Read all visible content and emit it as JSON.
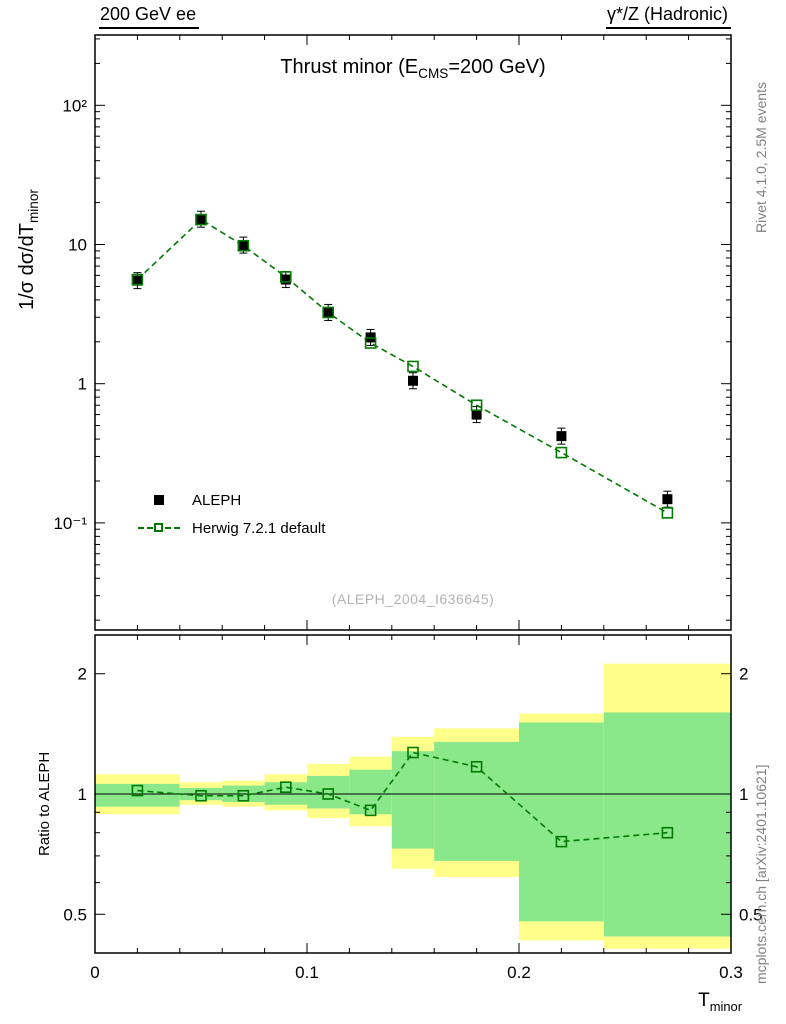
{
  "page": {
    "header_left": "200 GeV ee",
    "header_right": "γ*/Z (Hadronic)",
    "side_top": "Rivet 4.1.0,  2.5M events",
    "side_bottom": "mcplots.cern.ch [arXiv:2401.10621]",
    "watermark": "(ALEPH_2004_I636645)"
  },
  "main_panel": {
    "title": {
      "pre": "Thrust minor (E",
      "sub": "CMS",
      "post": "=200 GeV)"
    },
    "ylabel": {
      "pre": "1/σ  dσ/dT",
      "sub": "minor"
    }
  },
  "xlabel": {
    "pre": "T",
    "sub": "minor"
  },
  "chart_data": {
    "type": "line",
    "title": "Thrust minor (E_CMS=200 GeV)",
    "xlabel": "T_minor",
    "ylabel": "1/σ dσ/dT_minor",
    "x_range": [
      0,
      0.3
    ],
    "y_scale": "log",
    "y_range": [
      0.017,
      320
    ],
    "x_major_ticks": [
      0,
      0.1,
      0.2,
      0.3
    ],
    "x_tick_labels": [
      "0",
      "0.1",
      "0.2",
      "0.3"
    ],
    "y_major_ticks": [
      0.1,
      1,
      10,
      100
    ],
    "y_tick_labels": [
      "10⁻¹",
      "1",
      "10",
      "10²"
    ],
    "legend_position": "middle-left",
    "grid": false,
    "bin_edges": [
      0,
      0.04,
      0.06,
      0.08,
      0.1,
      0.12,
      0.14,
      0.16,
      0.2,
      0.24,
      0.3
    ],
    "x": [
      0.02,
      0.05,
      0.07,
      0.09,
      0.11,
      0.13,
      0.15,
      0.18,
      0.22,
      0.27
    ],
    "series": [
      {
        "name": "ALEPH",
        "marker": "filled-square",
        "color": "#000000",
        "style": "points",
        "values": [
          5.5,
          15.2,
          9.9,
          5.6,
          3.25,
          2.15,
          1.05,
          0.6,
          0.42,
          0.148
        ]
      },
      {
        "name": "Herwig 7.2.1 default",
        "marker": "open-square",
        "color": "#007a00",
        "style": "dashed-line",
        "values": [
          5.6,
          15.1,
          9.8,
          5.85,
          3.25,
          1.96,
          1.33,
          0.7,
          0.32,
          0.118
        ]
      }
    ],
    "ratio": {
      "ylabel": "Ratio to ALEPH",
      "y_scale": "log",
      "y_range": [
        0.4,
        2.5
      ],
      "y_major_ticks": [
        0.5,
        1,
        2
      ],
      "y_tick_labels": [
        "0.5",
        "1",
        "2"
      ],
      "y_ticks_minor": [
        0.4,
        0.6,
        0.7,
        0.8,
        0.9
      ],
      "band_outer_color": "#ffff8a",
      "band_inner_color": "#8ae88a",
      "values": [
        1.02,
        0.99,
        0.99,
        1.04,
        1.0,
        0.91,
        1.27,
        1.17,
        0.76,
        0.8
      ],
      "bands": [
        {
          "outer": [
            0.89,
            1.12
          ],
          "inner": [
            0.93,
            1.06
          ]
        },
        {
          "outer": [
            0.94,
            1.07
          ],
          "inner": [
            0.965,
            1.035
          ]
        },
        {
          "outer": [
            0.93,
            1.08
          ],
          "inner": [
            0.955,
            1.05
          ]
        },
        {
          "outer": [
            0.91,
            1.12
          ],
          "inner": [
            0.94,
            1.07
          ]
        },
        {
          "outer": [
            0.87,
            1.19
          ],
          "inner": [
            0.92,
            1.11
          ]
        },
        {
          "outer": [
            0.83,
            1.24
          ],
          "inner": [
            0.89,
            1.15
          ]
        },
        {
          "outer": [
            0.65,
            1.39
          ],
          "inner": [
            0.73,
            1.28
          ]
        },
        {
          "outer": [
            0.62,
            1.46
          ],
          "inner": [
            0.68,
            1.35
          ]
        },
        {
          "outer": [
            0.43,
            1.59
          ],
          "inner": [
            0.48,
            1.51
          ]
        },
        {
          "outer": [
            0.41,
            2.12
          ],
          "inner": [
            0.44,
            1.6
          ]
        }
      ]
    }
  }
}
